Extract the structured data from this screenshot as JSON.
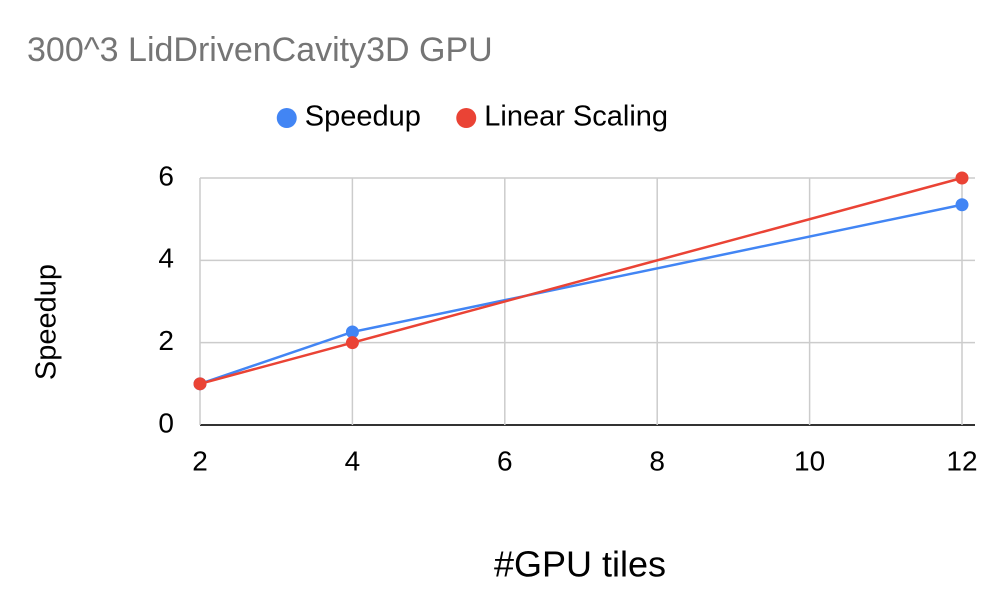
{
  "chart_data": {
    "type": "line",
    "title": "300^3 LidDrivenCavity3D GPU",
    "x_label": "#GPU tiles",
    "y_label": "Speedup",
    "x": [
      2,
      4,
      12
    ],
    "series": [
      {
        "name": "Speedup",
        "color": "#4285f4",
        "values": [
          1,
          2.26,
          5.35
        ]
      },
      {
        "name": "Linear Scaling",
        "color": "#ea4335",
        "values": [
          1,
          2,
          6
        ]
      }
    ],
    "xlim": [
      2,
      12
    ],
    "xticks": [
      2,
      4,
      6,
      8,
      10,
      12
    ],
    "ylim": [
      0,
      6
    ],
    "yticks": [
      0,
      2,
      4,
      6
    ],
    "grid": true,
    "legend": "top"
  }
}
